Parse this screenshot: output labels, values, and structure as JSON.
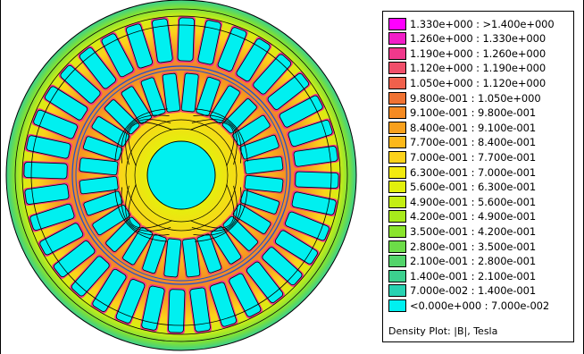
{
  "legend": {
    "caption": "Density Plot: |B|, Tesla",
    "ranges": [
      {
        "label": "1.330e+000 : >1.400e+000",
        "color": "#ff00ff"
      },
      {
        "label": "1.260e+000 : 1.330e+000",
        "color": "#f21ec8"
      },
      {
        "label": "1.190e+000 : 1.260e+000",
        "color": "#f0388c"
      },
      {
        "label": "1.120e+000 : 1.190e+000",
        "color": "#f04e6a"
      },
      {
        "label": "1.050e+000 : 1.120e+000",
        "color": "#f0604c"
      },
      {
        "label": "9.800e-001 : 1.050e+000",
        "color": "#f07232"
      },
      {
        "label": "9.100e-001 : 9.800e-001",
        "color": "#f58a22"
      },
      {
        "label": "8.400e-001 : 9.100e-001",
        "color": "#f8a01c"
      },
      {
        "label": "7.700e-001 : 8.400e-001",
        "color": "#fcb81a"
      },
      {
        "label": "7.000e-001 : 7.700e-001",
        "color": "#fcd21a"
      },
      {
        "label": "6.300e-001 : 7.000e-001",
        "color": "#f2ea10"
      },
      {
        "label": "5.600e-001 : 6.300e-001",
        "color": "#e2f00c"
      },
      {
        "label": "4.900e-001 : 5.600e-001",
        "color": "#c4ee12"
      },
      {
        "label": "4.200e-001 : 4.900e-001",
        "color": "#a8ea1c"
      },
      {
        "label": "3.500e-001 : 4.200e-001",
        "color": "#8ae42c"
      },
      {
        "label": "2.800e-001 : 3.500e-001",
        "color": "#6cdc48"
      },
      {
        "label": "2.100e-001 : 2.800e-001",
        "color": "#52d46a"
      },
      {
        "label": "1.400e-001 : 2.100e-001",
        "color": "#3cd08e"
      },
      {
        "label": "7.000e-002 : 1.400e-001",
        "color": "#28d2b2"
      },
      {
        "label": "<0.000e+000 : 7.000e-002",
        "color": "#00f0f0"
      }
    ]
  }
}
